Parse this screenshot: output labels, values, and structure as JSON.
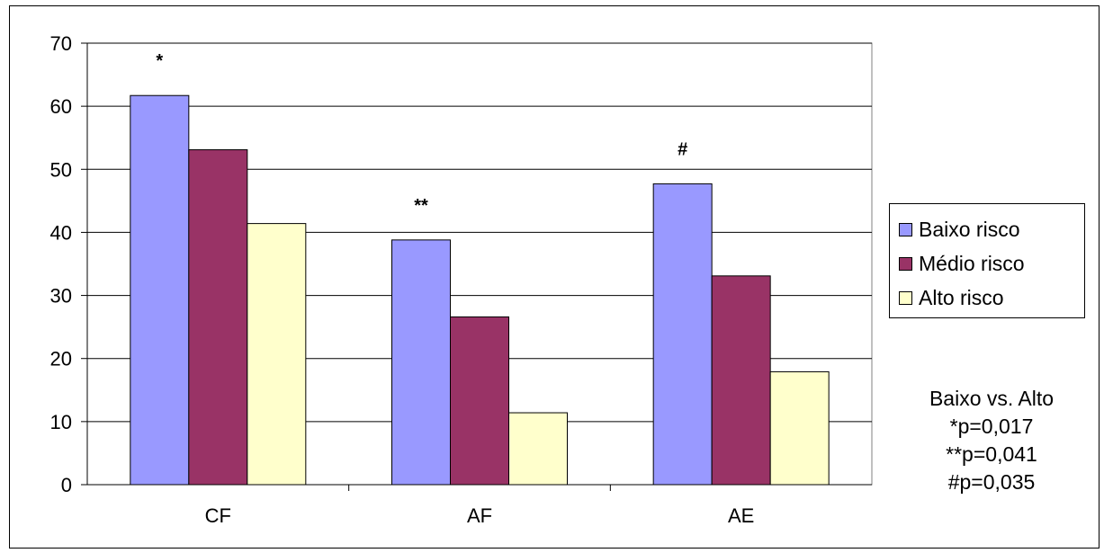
{
  "chart_data": {
    "type": "bar",
    "categories": [
      "CF",
      "AF",
      "AE"
    ],
    "series": [
      {
        "name": "Baixo risco",
        "values": [
          61.7,
          38.8,
          47.7
        ],
        "color": "#9999ff"
      },
      {
        "name": "Médio risco",
        "values": [
          53.1,
          26.6,
          33.1
        ],
        "color": "#993366"
      },
      {
        "name": "Alto risco",
        "values": [
          41.4,
          11.4,
          17.9
        ],
        "color": "#ffffcc"
      }
    ],
    "ylim": [
      0,
      70
    ],
    "yticks": [
      0,
      10,
      20,
      30,
      40,
      50,
      60,
      70
    ],
    "grid": true,
    "legend_position": "right",
    "plot_background": "#ffffff",
    "gridline_color": "#000000",
    "annotations": [
      {
        "category": "CF",
        "text": "*"
      },
      {
        "category": "AF",
        "text": "**"
      },
      {
        "category": "AE",
        "text": "#"
      }
    ],
    "stats_text": [
      "Baixo vs. Alto",
      "*p=0,017",
      "**p=0,041",
      "#p=0,035"
    ]
  }
}
